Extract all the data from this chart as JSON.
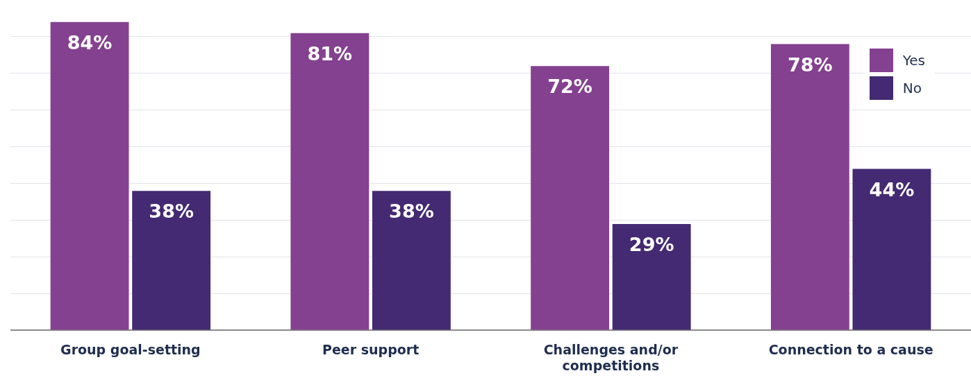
{
  "chart_data": {
    "type": "bar",
    "categories": [
      "Group goal-setting",
      "Peer support",
      "Challenges and/or competitions",
      "Connection to a cause"
    ],
    "series": [
      {
        "name": "Yes",
        "color": "#84418f",
        "values": [
          84,
          81,
          72,
          78
        ],
        "value_labels": [
          "84%",
          "81%",
          "72%",
          "78%"
        ]
      },
      {
        "name": "No",
        "color": "#432a72",
        "values": [
          38,
          38,
          29,
          44
        ],
        "value_labels": [
          "38%",
          "38%",
          "29%",
          "44%"
        ]
      }
    ],
    "yticks": [
      {
        "value": 0,
        "label": null
      },
      {
        "value": 10,
        "label": null
      },
      {
        "value": 20,
        "label": null
      },
      {
        "value": 30,
        "label": null
      },
      {
        "value": 40,
        "label": null
      },
      {
        "value": 50,
        "label": null
      },
      {
        "value": 60,
        "label": null
      },
      {
        "value": 70,
        "label": null
      },
      {
        "value": 80,
        "label": null
      }
    ],
    "grid": "y",
    "legend": "top right",
    "tick_labels": "x"
  }
}
